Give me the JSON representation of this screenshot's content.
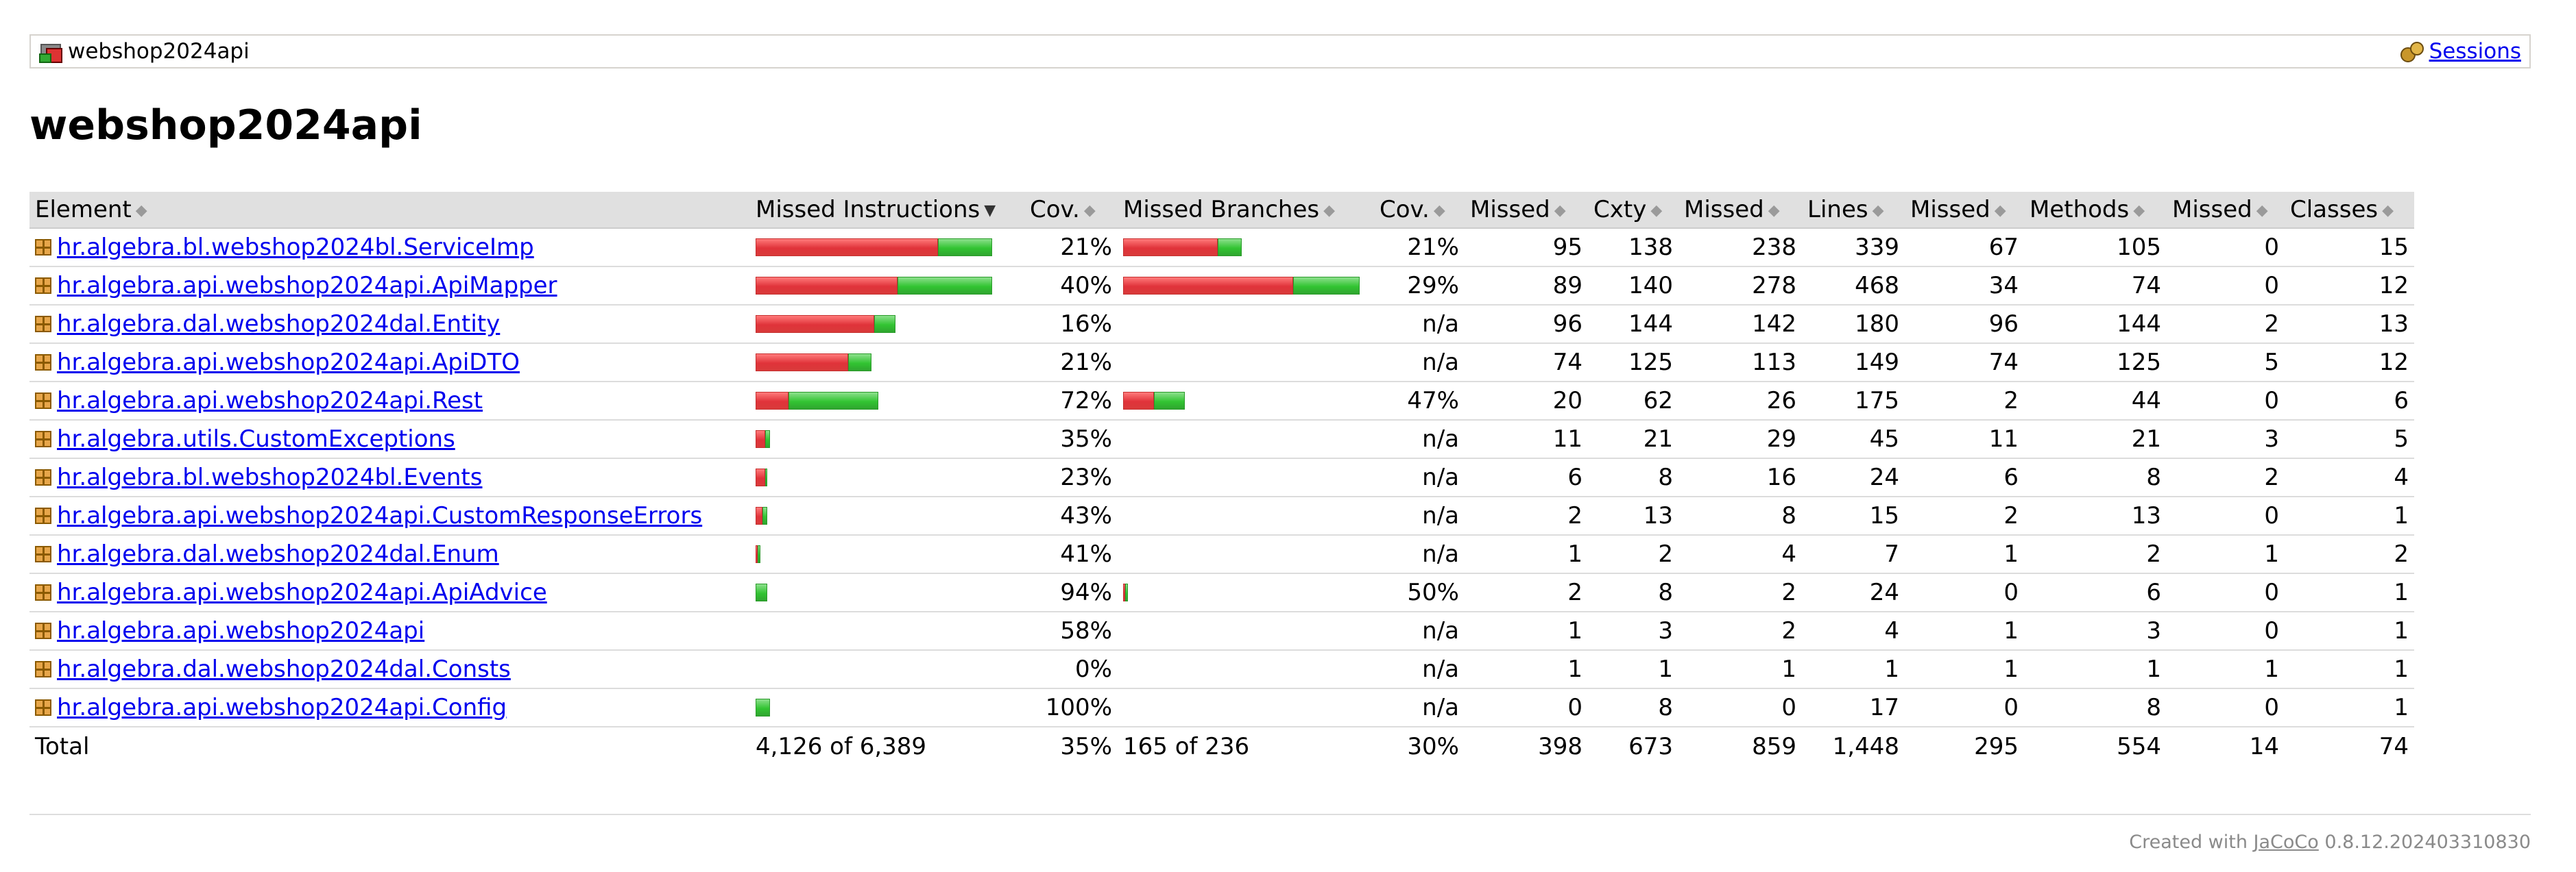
{
  "breadcrumb": {
    "title": "webshop2024api",
    "sessions_label": "Sessions"
  },
  "page_title": "webshop2024api",
  "columns": {
    "element": "Element",
    "missed_instructions": "Missed Instructions",
    "cov1": "Cov.",
    "missed_branches": "Missed Branches",
    "cov2": "Cov.",
    "missed_cxty": "Missed",
    "cxty": "Cxty",
    "missed_lines": "Missed",
    "lines": "Lines",
    "missed_methods": "Missed",
    "methods": "Methods",
    "missed_classes": "Missed",
    "classes": "Classes"
  },
  "colors": {
    "missed": "#e0333a",
    "covered": "#32c432",
    "header_bg": "#e0e0e0",
    "link": "#0000ee"
  },
  "rows": [
    {
      "name": "hr.algebra.bl.webshop2024bl.ServiceImp",
      "instr_missed": 77,
      "instr_covered": 23,
      "cov": "21%",
      "br_missed": 40,
      "br_covered": 10,
      "bcov": "21%",
      "mcx": "95",
      "cx": "138",
      "mln": "238",
      "ln": "339",
      "mmt": "67",
      "mt": "105",
      "mcl": "0",
      "cl": "15"
    },
    {
      "name": "hr.algebra.api.webshop2024api.ApiMapper",
      "instr_missed": 60,
      "instr_covered": 40,
      "cov": "40%",
      "br_missed": 72,
      "br_covered": 28,
      "bcov": "29%",
      "mcx": "89",
      "cx": "140",
      "mln": "278",
      "ln": "468",
      "mmt": "34",
      "mt": "74",
      "mcl": "0",
      "cl": "12"
    },
    {
      "name": "hr.algebra.dal.webshop2024dal.Entity",
      "instr_missed": 50,
      "instr_covered": 9,
      "cov": "16%",
      "br_missed": 0,
      "br_covered": 0,
      "bcov": "n/a",
      "mcx": "96",
      "cx": "144",
      "mln": "142",
      "ln": "180",
      "mmt": "96",
      "mt": "144",
      "mcl": "2",
      "cl": "13"
    },
    {
      "name": "hr.algebra.api.webshop2024api.ApiDTO",
      "instr_missed": 39,
      "instr_covered": 10,
      "cov": "21%",
      "br_missed": 0,
      "br_covered": 0,
      "bcov": "n/a",
      "mcx": "74",
      "cx": "125",
      "mln": "113",
      "ln": "149",
      "mmt": "74",
      "mt": "125",
      "mcl": "5",
      "cl": "12"
    },
    {
      "name": "hr.algebra.api.webshop2024api.Rest",
      "instr_missed": 14,
      "instr_covered": 38,
      "cov": "72%",
      "br_missed": 13,
      "br_covered": 13,
      "bcov": "47%",
      "mcx": "20",
      "cx": "62",
      "mln": "26",
      "ln": "175",
      "mmt": "2",
      "mt": "44",
      "mcl": "0",
      "cl": "6"
    },
    {
      "name": "hr.algebra.utils.CustomExceptions",
      "instr_missed": 4,
      "instr_covered": 2,
      "cov": "35%",
      "br_missed": 0,
      "br_covered": 0,
      "bcov": "n/a",
      "mcx": "11",
      "cx": "21",
      "mln": "29",
      "ln": "45",
      "mmt": "11",
      "mt": "21",
      "mcl": "3",
      "cl": "5"
    },
    {
      "name": "hr.algebra.bl.webshop2024bl.Events",
      "instr_missed": 4,
      "instr_covered": 1,
      "cov": "23%",
      "br_missed": 0,
      "br_covered": 0,
      "bcov": "n/a",
      "mcx": "6",
      "cx": "8",
      "mln": "16",
      "ln": "24",
      "mmt": "6",
      "mt": "8",
      "mcl": "2",
      "cl": "4"
    },
    {
      "name": "hr.algebra.api.webshop2024api.CustomResponseErrors",
      "instr_missed": 3,
      "instr_covered": 2,
      "cov": "43%",
      "br_missed": 0,
      "br_covered": 0,
      "bcov": "n/a",
      "mcx": "2",
      "cx": "13",
      "mln": "8",
      "ln": "15",
      "mmt": "2",
      "mt": "13",
      "mcl": "0",
      "cl": "1"
    },
    {
      "name": "hr.algebra.dal.webshop2024dal.Enum",
      "instr_missed": 1,
      "instr_covered": 1,
      "cov": "41%",
      "br_missed": 0,
      "br_covered": 0,
      "bcov": "n/a",
      "mcx": "1",
      "cx": "2",
      "mln": "4",
      "ln": "7",
      "mmt": "1",
      "mt": "2",
      "mcl": "1",
      "cl": "2"
    },
    {
      "name": "hr.algebra.api.webshop2024api.ApiAdvice",
      "instr_missed": 0,
      "instr_covered": 5,
      "cov": "94%",
      "br_missed": 1,
      "br_covered": 1,
      "bcov": "50%",
      "mcx": "2",
      "cx": "8",
      "mln": "2",
      "ln": "24",
      "mmt": "0",
      "mt": "6",
      "mcl": "0",
      "cl": "1"
    },
    {
      "name": "hr.algebra.api.webshop2024api",
      "instr_missed": 0,
      "instr_covered": 0,
      "cov": "58%",
      "br_missed": 0,
      "br_covered": 0,
      "bcov": "n/a",
      "mcx": "1",
      "cx": "3",
      "mln": "2",
      "ln": "4",
      "mmt": "1",
      "mt": "3",
      "mcl": "0",
      "cl": "1"
    },
    {
      "name": "hr.algebra.dal.webshop2024dal.Consts",
      "instr_missed": 0,
      "instr_covered": 0,
      "cov": "0%",
      "br_missed": 0,
      "br_covered": 0,
      "bcov": "n/a",
      "mcx": "1",
      "cx": "1",
      "mln": "1",
      "ln": "1",
      "mmt": "1",
      "mt": "1",
      "mcl": "1",
      "cl": "1"
    },
    {
      "name": "hr.algebra.api.webshop2024api.Config",
      "instr_missed": 0,
      "instr_covered": 6,
      "cov": "100%",
      "br_missed": 0,
      "br_covered": 0,
      "bcov": "n/a",
      "mcx": "0",
      "cx": "8",
      "mln": "0",
      "ln": "17",
      "mmt": "0",
      "mt": "8",
      "mcl": "0",
      "cl": "1"
    }
  ],
  "total": {
    "label": "Total",
    "instr": "4,126 of 6,389",
    "cov": "35%",
    "branches": "165 of 236",
    "bcov": "30%",
    "mcx": "398",
    "cx": "673",
    "mln": "859",
    "ln": "1,448",
    "mmt": "295",
    "mt": "554",
    "mcl": "14",
    "cl": "74"
  },
  "footer": {
    "prefix": "Created with ",
    "link": "JaCoCo",
    "suffix": " 0.8.12.202403310830"
  }
}
